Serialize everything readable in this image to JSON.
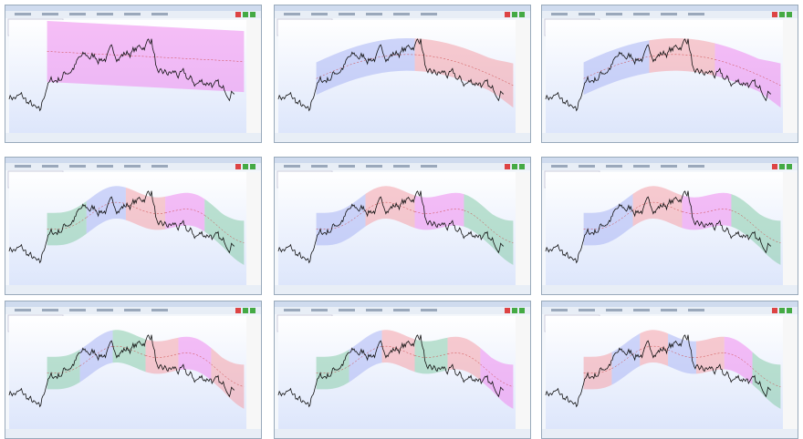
{
  "panels": [
    {
      "channels": [
        {
          "color": "#ee88ee"
        }
      ]
    },
    {
      "channels": [
        {
          "color": "#aab4f4"
        },
        {
          "color": "#f4a0a8"
        }
      ]
    },
    {
      "channels": [
        {
          "color": "#aab4f4"
        },
        {
          "color": "#f4a0a8"
        },
        {
          "color": "#ee88ee"
        }
      ]
    },
    {
      "channels": [
        {
          "color": "#88ccaa"
        },
        {
          "color": "#aab4f4"
        },
        {
          "color": "#f4a0a8"
        },
        {
          "color": "#ee88ee"
        },
        {
          "color": "#88ccaa"
        }
      ]
    },
    {
      "channels": [
        {
          "color": "#aab4f4"
        },
        {
          "color": "#f4a0a8"
        },
        {
          "color": "#ee88ee"
        },
        {
          "color": "#88ccaa"
        }
      ]
    },
    {
      "channels": [
        {
          "color": "#aab4f4"
        },
        {
          "color": "#f4a0a8"
        },
        {
          "color": "#ee88ee"
        },
        {
          "color": "#88ccaa"
        }
      ]
    },
    {
      "channels": [
        {
          "color": "#88ccaa"
        },
        {
          "color": "#aab4f4"
        },
        {
          "color": "#88ccaa"
        },
        {
          "color": "#f4a0a8"
        },
        {
          "color": "#ee88ee"
        },
        {
          "color": "#f4a0a8"
        }
      ]
    },
    {
      "channels": [
        {
          "color": "#88ccaa"
        },
        {
          "color": "#aab4f4"
        },
        {
          "color": "#f4a0a8"
        },
        {
          "color": "#88ccaa"
        },
        {
          "color": "#f4a0a8"
        },
        {
          "color": "#ee88ee"
        }
      ]
    },
    {
      "channels": [
        {
          "color": "#f4a0a8"
        },
        {
          "color": "#aab4f4"
        },
        {
          "color": "#f4a0a8"
        },
        {
          "color": "#aab4f4"
        },
        {
          "color": "#f4a0a8"
        },
        {
          "color": "#ee88ee"
        },
        {
          "color": "#88ccaa"
        }
      ]
    }
  ]
}
